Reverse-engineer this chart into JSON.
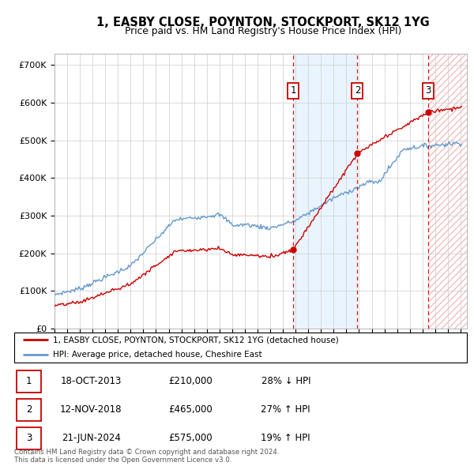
{
  "title": "1, EASBY CLOSE, POYNTON, STOCKPORT, SK12 1YG",
  "subtitle": "Price paid vs. HM Land Registry's House Price Index (HPI)",
  "ylim": [
    0,
    730000
  ],
  "yticks": [
    0,
    100000,
    200000,
    300000,
    400000,
    500000,
    600000,
    700000
  ],
  "ytick_labels": [
    "£0",
    "£100K",
    "£200K",
    "£300K",
    "£400K",
    "£500K",
    "£600K",
    "£700K"
  ],
  "xlim_start": 1995.0,
  "xlim_end": 2027.5,
  "transactions": [
    {
      "num": 1,
      "date": "18-OCT-2013",
      "price": 210000,
      "year": 2013.8,
      "pct": "28% ↓ HPI"
    },
    {
      "num": 2,
      "date": "12-NOV-2018",
      "price": 465000,
      "year": 2018.87,
      "pct": "27% ↑ HPI"
    },
    {
      "num": 3,
      "date": "21-JUN-2024",
      "price": 575000,
      "year": 2024.47,
      "pct": "19% ↑ HPI"
    }
  ],
  "legend_label_red": "1, EASBY CLOSE, POYNTON, STOCKPORT, SK12 1YG (detached house)",
  "legend_label_blue": "HPI: Average price, detached house, Cheshire East",
  "footer_line1": "Contains HM Land Registry data © Crown copyright and database right 2024.",
  "footer_line2": "This data is licensed under the Open Government Licence v3.0.",
  "red_color": "#cc0000",
  "blue_color": "#6699cc",
  "shade_color_blue": "#ddeeff",
  "grid_color": "#cccccc"
}
